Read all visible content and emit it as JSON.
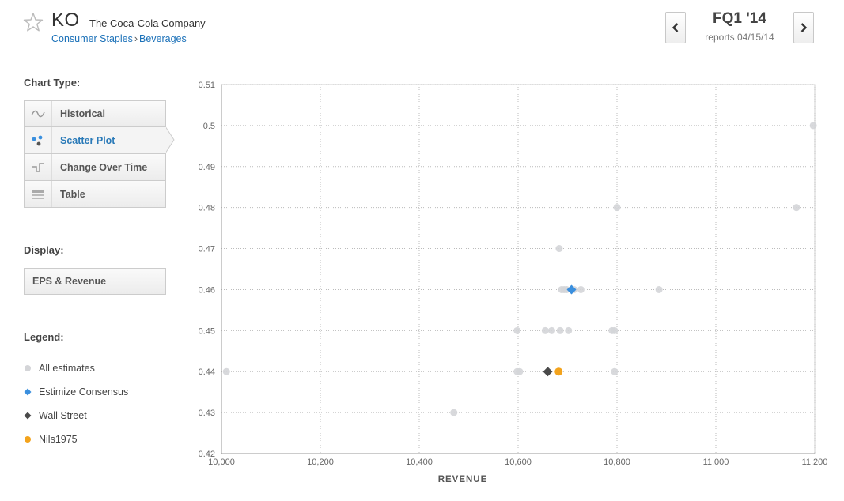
{
  "header": {
    "ticker": "KO",
    "company": "The Coca-Cola Company",
    "sector": "Consumer Staples",
    "breadcrumb_sep": "›",
    "industry": "Beverages",
    "quarter": "FQ1 '14",
    "reports": "reports 04/15/14"
  },
  "sidebar": {
    "chart_type_label": "Chart Type:",
    "chart_types": [
      {
        "label": "Historical",
        "icon": "wave-icon",
        "active": false
      },
      {
        "label": "Scatter Plot",
        "icon": "scatter-icon",
        "active": true
      },
      {
        "label": "Change Over Time",
        "icon": "step-icon",
        "active": false
      },
      {
        "label": "Table",
        "icon": "table-icon",
        "active": false
      }
    ],
    "display_label": "Display:",
    "display_value": "EPS & Revenue",
    "legend_label": "Legend:",
    "legend": [
      {
        "label": "All estimates",
        "marker": "circle",
        "color": "#d4d5d8"
      },
      {
        "label": "Estimize Consensus",
        "marker": "diamond",
        "color": "#3a8fde"
      },
      {
        "label": "Wall Street",
        "marker": "diamond",
        "color": "#4a4a4a"
      },
      {
        "label": "Nils1975",
        "marker": "circle",
        "color": "#f3a31c"
      }
    ]
  },
  "chart_data": {
    "type": "scatter",
    "xlabel": "REVENUE",
    "ylabel": "",
    "xlim": [
      10000,
      11200
    ],
    "ylim": [
      0.42,
      0.51
    ],
    "x_ticks": [
      10000,
      10200,
      10400,
      10600,
      10800,
      11000,
      11200
    ],
    "x_tick_labels": [
      "10,000",
      "10,200",
      "10,400",
      "10,600",
      "10,800",
      "11,000",
      "11,200"
    ],
    "y_ticks": [
      0.42,
      0.43,
      0.44,
      0.45,
      0.46,
      0.47,
      0.48,
      0.49,
      0.5,
      0.51
    ],
    "y_tick_labels": [
      "0.42",
      "0.43",
      "0.44",
      "0.45",
      "0.46",
      "0.47",
      "0.48",
      "0.49",
      "0.5",
      "0.51"
    ],
    "grid": true,
    "series": [
      {
        "name": "All estimates",
        "marker": "circle",
        "color": "#d4d5d8",
        "points": [
          [
            10010,
            0.44
          ],
          [
            10470,
            0.43
          ],
          [
            10598,
            0.45
          ],
          [
            10598,
            0.44
          ],
          [
            10603,
            0.44
          ],
          [
            10655,
            0.45
          ],
          [
            10668,
            0.45
          ],
          [
            10685,
            0.45
          ],
          [
            10702,
            0.45
          ],
          [
            10683,
            0.47
          ],
          [
            10688,
            0.46
          ],
          [
            10693,
            0.46
          ],
          [
            10698,
            0.46
          ],
          [
            10713,
            0.46
          ],
          [
            10727,
            0.46
          ],
          [
            10790,
            0.45
          ],
          [
            10795,
            0.45
          ],
          [
            10795,
            0.44
          ],
          [
            10800,
            0.48
          ],
          [
            10885,
            0.46
          ],
          [
            11163,
            0.48
          ],
          [
            11197,
            0.5
          ]
        ]
      },
      {
        "name": "Estimize Consensus",
        "marker": "diamond",
        "color": "#3a8fde",
        "points": [
          [
            10708,
            0.46
          ]
        ]
      },
      {
        "name": "Wall Street",
        "marker": "diamond",
        "color": "#4a4a4a",
        "points": [
          [
            10660,
            0.44
          ]
        ]
      },
      {
        "name": "Nils1975",
        "marker": "circle",
        "color": "#f3a31c",
        "points": [
          [
            10682,
            0.44
          ]
        ]
      }
    ]
  }
}
